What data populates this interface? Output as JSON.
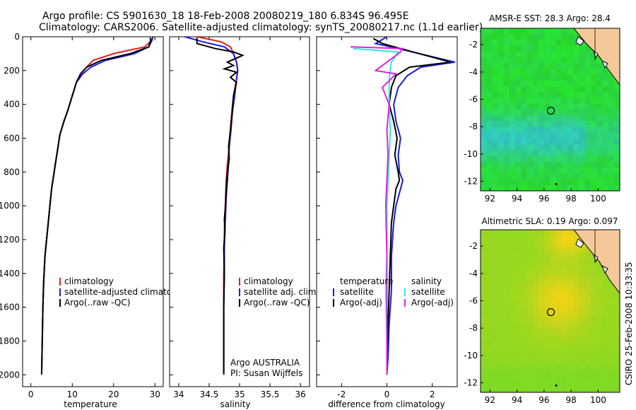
{
  "header": {
    "line1": "Argo profile: CS 5901630_18 18-Feb-2008 20080219_180 6.834S 96.495E",
    "line2": "Climatology: CARS2006. Satellite-adjusted climatology: synTS_20080217.nc (1.1d earlier)"
  },
  "side_label": "CSIRO 25-Feb-2008 10:33:35",
  "colors": {
    "climatology": "#e02020",
    "satellite": "#1a1adf",
    "argo": "#000000",
    "satellite_sal": "#2ee6e6",
    "argo_sal": "#e020e0"
  },
  "chart_data": [
    {
      "type": "line",
      "id": "temperature",
      "xlabel": "temperature",
      "ylabel": "",
      "xlim": [
        -2,
        32
      ],
      "ylim": [
        2070,
        0
      ],
      "xticks": [
        0,
        10,
        20,
        30
      ],
      "yticks": [
        0,
        200,
        400,
        600,
        800,
        1000,
        1200,
        1400,
        1600,
        1800,
        2000
      ],
      "legend": [
        "climatology",
        "satellite-adjusted climatology",
        "Argo(..raw -QC)"
      ],
      "series": [
        {
          "name": "climatology",
          "color": "#e02020",
          "x": [
            29.5,
            29.2,
            27.5,
            20,
            15,
            13.5,
            12,
            11,
            10,
            9,
            8,
            7,
            6.5,
            6,
            5.5,
            5,
            4.6,
            4.2,
            3.8,
            3.4,
            3.1,
            2.9,
            2.6
          ],
          "y": [
            0,
            20,
            60,
            100,
            140,
            180,
            220,
            270,
            350,
            430,
            500,
            580,
            660,
            740,
            820,
            900,
            1000,
            1100,
            1200,
            1300,
            1450,
            1600,
            2000
          ]
        },
        {
          "name": "satellite-adjusted climatology",
          "color": "#1a1adf",
          "x": [
            29.5,
            29.3,
            28.5,
            25,
            18,
            14.5,
            12.5,
            11,
            10,
            9,
            8,
            7,
            6.5,
            6,
            5.5,
            5,
            4.6,
            4.2,
            3.8,
            3.4,
            3.1,
            2.9,
            2.6
          ],
          "y": [
            0,
            20,
            60,
            100,
            140,
            180,
            220,
            270,
            350,
            430,
            500,
            580,
            660,
            740,
            820,
            900,
            1000,
            1100,
            1200,
            1300,
            1450,
            1600,
            2000
          ]
        },
        {
          "name": "Argo(..raw -QC)",
          "color": "#000000",
          "x": [
            28.8,
            29,
            28.5,
            24,
            17,
            13.5,
            12,
            11,
            10,
            9,
            8,
            7,
            6.5,
            6,
            5.5,
            5,
            4.6,
            4.2,
            3.8,
            3.4,
            3.1,
            2.9,
            2.6
          ],
          "y": [
            5,
            20,
            60,
            100,
            140,
            180,
            220,
            270,
            350,
            430,
            500,
            580,
            660,
            740,
            820,
            900,
            1000,
            1100,
            1200,
            1300,
            1450,
            1600,
            1990
          ]
        }
      ]
    },
    {
      "type": "line",
      "id": "salinity",
      "xlabel": "salinity",
      "xlim": [
        33.85,
        36.15
      ],
      "ylim": [
        2070,
        0
      ],
      "xticks": [
        34,
        34.5,
        35,
        35.5,
        36
      ],
      "legend": [
        "climatology",
        "satellite adj. clim.",
        "Argo(..raw -QC)"
      ],
      "annotation": [
        "Argo AUSTRALIA",
        "PI: Susan Wijffels"
      ],
      "series": [
        {
          "name": "climatology",
          "color": "#e02020",
          "x": [
            34.3,
            34.7,
            34.85,
            34.9,
            34.95,
            34.97,
            34.95,
            34.9,
            34.87,
            34.85,
            34.83,
            34.8,
            34.78,
            34.77,
            34.76,
            34.75,
            34.75,
            34.74,
            34.74,
            34.74,
            34.74,
            34.74
          ],
          "y": [
            0,
            30,
            60,
            100,
            150,
            200,
            250,
            350,
            450,
            550,
            650,
            750,
            850,
            950,
            1050,
            1150,
            1250,
            1400,
            1600,
            1800,
            1900,
            2000
          ]
        },
        {
          "name": "satellite adj. clim.",
          "color": "#1a1adf",
          "x": [
            34.1,
            34.4,
            34.75,
            34.9,
            34.95,
            34.97,
            34.95,
            34.92,
            34.88,
            34.86,
            34.83,
            34.82,
            34.8,
            34.78,
            34.77,
            34.76,
            34.75,
            34.75,
            34.74,
            34.74,
            34.74,
            34.74
          ],
          "y": [
            0,
            30,
            60,
            100,
            150,
            200,
            250,
            350,
            450,
            550,
            650,
            750,
            850,
            950,
            1050,
            1150,
            1250,
            1400,
            1600,
            1800,
            1900,
            2000
          ]
        },
        {
          "name": "Argo(..raw -QC)",
          "color": "#000000",
          "x": [
            34.3,
            34.3,
            34.6,
            34.9,
            35.05,
            34.8,
            34.9,
            34.75,
            34.95,
            34.85,
            34.95,
            34.9,
            34.88,
            34.85,
            34.82,
            34.83,
            34.8,
            34.78,
            34.77,
            34.75,
            34.76,
            34.74,
            34.75,
            34.74,
            34.74,
            34.74
          ],
          "y": [
            5,
            40,
            70,
            90,
            110,
            150,
            170,
            190,
            210,
            240,
            270,
            350,
            450,
            550,
            650,
            720,
            800,
            900,
            1000,
            1080,
            1150,
            1250,
            1400,
            1600,
            1800,
            1990
          ]
        }
      ]
    },
    {
      "type": "line",
      "id": "difference",
      "xlabel": "difference from climatology",
      "xlim": [
        -3.1,
        3.1
      ],
      "ylim": [
        2070,
        0
      ],
      "xticks": [
        -2,
        0,
        2
      ],
      "legend_left_title": "temperature",
      "legend_left": [
        "satellite",
        "Argo(-adj)"
      ],
      "legend_right_title": "salinity",
      "legend_right": [
        "satellite",
        "Argo(-adj)"
      ],
      "series": [
        {
          "name": "temperature satellite",
          "color": "#1a1adf",
          "x": [
            0,
            -0.5,
            0.5,
            3,
            1.5,
            0.9,
            0.5,
            0.3,
            0.4,
            0.6,
            0.5,
            0.55,
            0.7,
            0.6,
            0.4,
            0.3,
            0.2,
            0.2,
            0.1,
            0.05,
            0.0
          ],
          "y": [
            0,
            40,
            70,
            150,
            180,
            230,
            300,
            400,
            500,
            600,
            700,
            800,
            850,
            900,
            1000,
            1100,
            1300,
            1500,
            1700,
            1900,
            2000
          ]
        },
        {
          "name": "temperature Argo(-adj)",
          "color": "#000000",
          "x": [
            -0.6,
            -0.2,
            0.6,
            2.8,
            1.0,
            0.4,
            0.2,
            0.1,
            0.3,
            0.45,
            0.35,
            0.5,
            0.55,
            0.4,
            0.3,
            0.2,
            0.15,
            0.1,
            0.05,
            0.0,
            0.0
          ],
          "y": [
            10,
            40,
            70,
            150,
            180,
            230,
            300,
            400,
            500,
            600,
            700,
            800,
            850,
            900,
            1000,
            1100,
            1300,
            1500,
            1700,
            1900,
            1990
          ]
        },
        {
          "name": "salinity satellite",
          "color": "#2ee6e6",
          "x": [
            -1.5,
            0.5,
            0.2,
            0.1,
            0.1,
            0.15,
            0.1,
            0.05,
            0.0,
            0.0,
            0.0,
            -0.05,
            0.0,
            0.0
          ],
          "y": [
            70,
            90,
            150,
            250,
            400,
            550,
            700,
            850,
            1000,
            1150,
            1300,
            1500,
            1800,
            2000
          ]
        },
        {
          "name": "salinity Argo(-adj)",
          "color": "#e020e0",
          "x": [
            -1.6,
            0.7,
            0.6,
            -0.5,
            0.4,
            -0.2,
            0.1,
            0.0,
            0.05,
            0.0,
            -0.05,
            0.0,
            0.0,
            0.0
          ],
          "y": [
            60,
            70,
            90,
            200,
            220,
            300,
            400,
            550,
            700,
            850,
            1000,
            1300,
            1700,
            2000
          ]
        }
      ]
    },
    {
      "type": "heatmap",
      "id": "sst_map",
      "title": "AMSR-E SST: 28.3 Argo: 28.4",
      "xlim": [
        91.3,
        101.6
      ],
      "ylim": [
        -12.7,
        -0.8
      ],
      "xticks": [
        92,
        94,
        96,
        98,
        100
      ],
      "yticks": [
        -2,
        -4,
        -6,
        -8,
        -10,
        -12
      ],
      "argo_position": {
        "lon": 96.5,
        "lat": -6.83
      }
    },
    {
      "type": "heatmap",
      "id": "sla_map",
      "title": "Altimetric SLA: 0.19 Argo: 0.097",
      "xlim": [
        91.3,
        101.6
      ],
      "ylim": [
        -12.7,
        -0.8
      ],
      "xticks": [
        92,
        94,
        96,
        98,
        100
      ],
      "yticks": [
        -2,
        -4,
        -6,
        -8,
        -10,
        -12
      ],
      "argo_position": {
        "lon": 96.5,
        "lat": -6.83
      }
    }
  ]
}
